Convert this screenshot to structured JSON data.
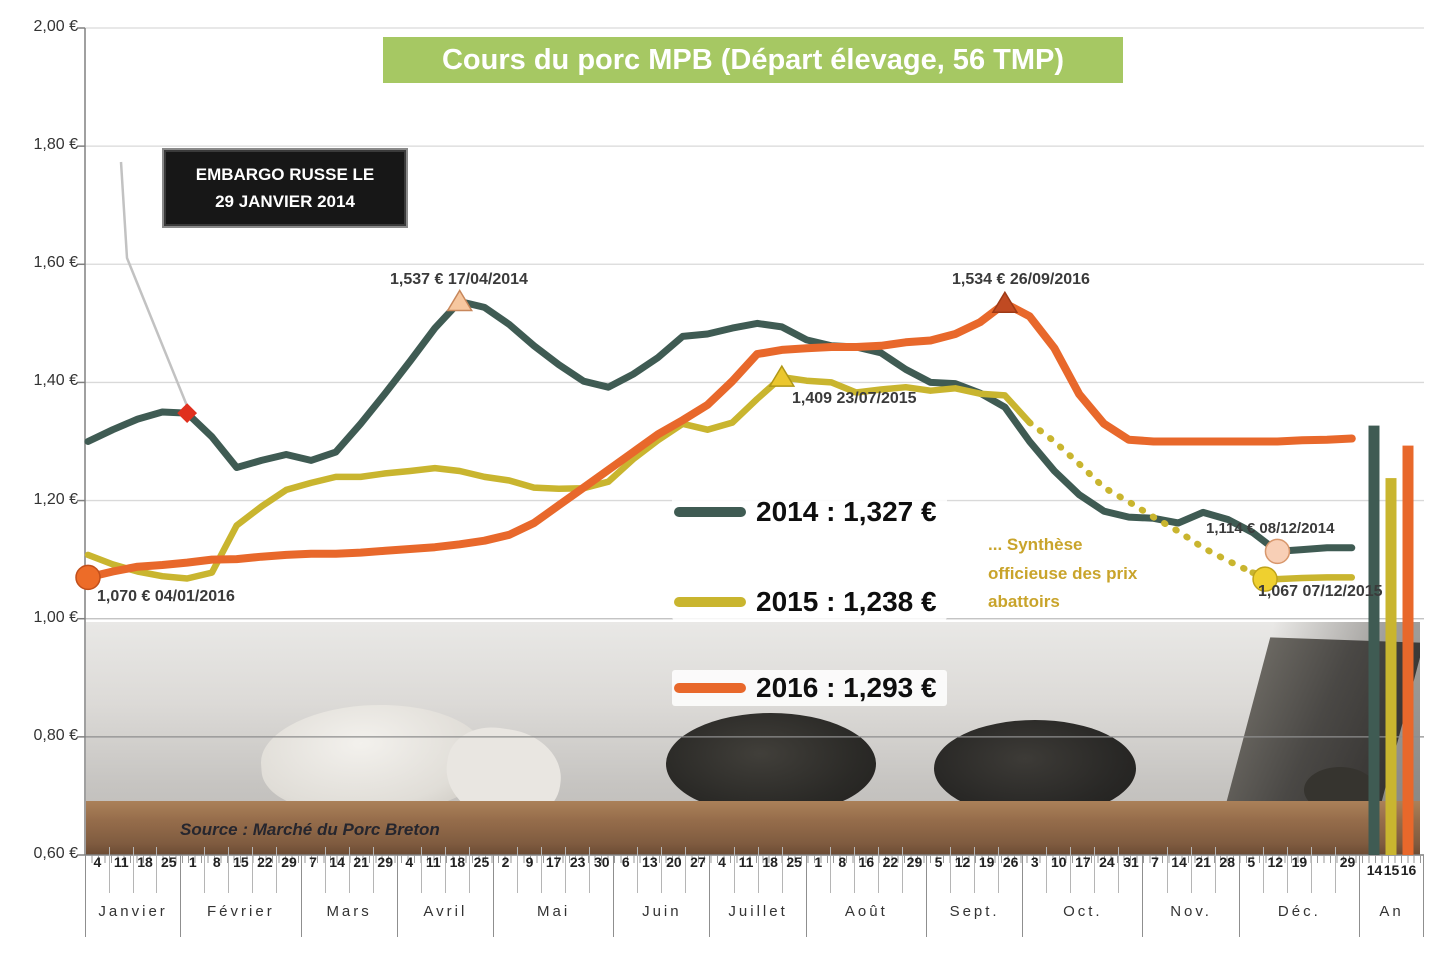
{
  "title": "Cours du porc MPB (Départ élevage, 56 TMP)",
  "colors": {
    "title_bg": "#a6c863",
    "series_2014": "#3f5b53",
    "series_2015": "#c9b52f",
    "series_2016": "#e8682b",
    "synthese_text": "#c9a42b",
    "embargo_bg": "#171717",
    "grid": "#d9d9d9",
    "axis": "#808080"
  },
  "embargo": {
    "line1": "EMBARGO RUSSE LE",
    "line2": "29 JANVIER 2014"
  },
  "source": "Source : Marché du Porc Breton",
  "synthese": {
    "line1": "... Synthèse",
    "line2": "officieuse des prix",
    "line3": "abattoirs"
  },
  "legend": [
    {
      "name": "2014",
      "label": "2014 : 1,327 €",
      "color": "#3f5b53"
    },
    {
      "name": "2015",
      "label": "2015 : 1,238 €",
      "color": "#c9b52f"
    },
    {
      "name": "2016",
      "label": "2016 : 1,293 €",
      "color": "#e8682b"
    }
  ],
  "annotations": {
    "peak_2014": "1,537 € 17/04/2014",
    "peak_2016": "1,534 € 26/09/2016",
    "peak_2015": "1,409 23/07/2015",
    "start_2016": "1,070 € 04/01/2016",
    "end_2014": "1,114 € 08/12/2014",
    "end_2015": "1,067 07/12/2015"
  },
  "y_axis": {
    "labels": [
      "2,00 €",
      "1,80 €",
      "1,60 €",
      "1,40 €",
      "1,20 €",
      "1,00 €",
      "0,80 €",
      "0,60 €"
    ],
    "values": [
      2.0,
      1.8,
      1.6,
      1.4,
      1.2,
      1.0,
      0.8,
      0.6
    ]
  },
  "x_axis": {
    "months": [
      {
        "label": "Janvier",
        "weeks": [
          "4",
          "11",
          "18",
          "25"
        ]
      },
      {
        "label": "Février",
        "weeks": [
          "1",
          "8",
          "15",
          "22",
          "29"
        ]
      },
      {
        "label": "Mars",
        "weeks": [
          "7",
          "14",
          "21",
          "29"
        ]
      },
      {
        "label": "Avril",
        "weeks": [
          "4",
          "11",
          "18",
          "25"
        ]
      },
      {
        "label": "Mai",
        "weeks": [
          "2",
          "9",
          "17",
          "23",
          "30"
        ]
      },
      {
        "label": "Juin",
        "weeks": [
          "6",
          "13",
          "20",
          "27"
        ]
      },
      {
        "label": "Juillet",
        "weeks": [
          "4",
          "11",
          "18",
          "25"
        ]
      },
      {
        "label": "Août",
        "weeks": [
          "1",
          "8",
          "16",
          "22",
          "29"
        ]
      },
      {
        "label": "Sept.",
        "weeks": [
          "5",
          "12",
          "19",
          "26"
        ]
      },
      {
        "label": "Oct.",
        "weeks": [
          "3",
          "10",
          "17",
          "24",
          "31"
        ]
      },
      {
        "label": "Nov.",
        "weeks": [
          "7",
          "14",
          "21",
          "28"
        ]
      },
      {
        "label": "Déc.",
        "weeks": [
          "5",
          "12",
          "19",
          "",
          "29"
        ]
      }
    ],
    "an": {
      "label": "An",
      "years": [
        "14",
        "15",
        "16"
      ]
    }
  },
  "chart_data": {
    "type": "line",
    "title": "Cours du porc MPB (Départ élevage, 56 TMP)",
    "x_unit": "semaines (janvier à décembre)",
    "y_unit": "€/kg",
    "ylim": [
      0.6,
      2.0
    ],
    "grid": true,
    "series": [
      {
        "name": "2014",
        "color": "#3f5b53",
        "annual_average": 1.327,
        "values": [
          1.3,
          1.32,
          1.338,
          1.35,
          1.348,
          1.308,
          1.256,
          1.268,
          1.278,
          1.268,
          1.282,
          1.33,
          1.382,
          1.436,
          1.492,
          1.537,
          1.527,
          1.498,
          1.462,
          1.43,
          1.402,
          1.392,
          1.414,
          1.442,
          1.478,
          1.482,
          1.492,
          1.5,
          1.494,
          1.472,
          1.462,
          1.46,
          1.45,
          1.422,
          1.4,
          1.398,
          1.382,
          1.358,
          1.3,
          1.25,
          1.21,
          1.182,
          1.172,
          1.17,
          1.162,
          1.18,
          1.168,
          1.146,
          1.114,
          1.117,
          1.12,
          1.12
        ]
      },
      {
        "name": "2015",
        "color": "#c9b52f",
        "annual_average": 1.238,
        "dotted_weeks": [
          38,
          47
        ],
        "dotted_note": "... Synthèse officieuse des prix abattoirs",
        "values": [
          1.108,
          1.092,
          1.08,
          1.072,
          1.068,
          1.078,
          1.158,
          1.19,
          1.218,
          1.23,
          1.24,
          1.24,
          1.246,
          1.25,
          1.255,
          1.25,
          1.24,
          1.234,
          1.222,
          1.22,
          1.221,
          1.232,
          1.27,
          1.302,
          1.33,
          1.32,
          1.332,
          1.372,
          1.409,
          1.403,
          1.4,
          1.383,
          1.388,
          1.392,
          1.386,
          1.39,
          1.381,
          1.378,
          1.332,
          1.3,
          1.262,
          1.222,
          1.198,
          1.172,
          1.148,
          1.12,
          1.098,
          1.078,
          1.067,
          1.069,
          1.07,
          1.07
        ]
      },
      {
        "name": "2016",
        "color": "#e8682b",
        "annual_average": 1.293,
        "values": [
          1.07,
          1.08,
          1.088,
          1.091,
          1.095,
          1.1,
          1.101,
          1.105,
          1.108,
          1.11,
          1.11,
          1.112,
          1.115,
          1.118,
          1.121,
          1.126,
          1.132,
          1.142,
          1.162,
          1.192,
          1.222,
          1.252,
          1.282,
          1.312,
          1.336,
          1.362,
          1.402,
          1.448,
          1.455,
          1.458,
          1.46,
          1.46,
          1.462,
          1.468,
          1.471,
          1.482,
          1.502,
          1.534,
          1.512,
          1.458,
          1.38,
          1.33,
          1.303,
          1.3,
          1.3,
          1.3,
          1.3,
          1.3,
          1.3,
          1.302,
          1.303,
          1.305
        ]
      }
    ],
    "annual_bars": [
      {
        "name": "2014",
        "value": 1.327
      },
      {
        "name": "2015",
        "value": 1.238
      },
      {
        "name": "2016",
        "value": 1.293
      }
    ],
    "key_points": [
      {
        "series": "2014",
        "week": 4,
        "value": 1.348,
        "marker": "diamond",
        "fill": "#e0301e",
        "stroke": "#b01e10",
        "note": "Embargo russe le 29 janvier 2014"
      },
      {
        "series": "2014",
        "week": 15,
        "value": 1.537,
        "marker": "triangle",
        "fill": "#f6c79f",
        "stroke": "#c8875b",
        "note": "1,537 € 17/04/2014"
      },
      {
        "series": "2015",
        "week": 28,
        "value": 1.409,
        "marker": "triangle",
        "fill": "#ebc72e",
        "stroke": "#b09717",
        "note": "1,409 23/07/2015"
      },
      {
        "series": "2016",
        "week": 37,
        "value": 1.534,
        "marker": "triangle",
        "fill": "#c04a22",
        "stroke": "#9e3a16",
        "note": "1,534 € 26/09/2016"
      },
      {
        "series": "2016",
        "week": 0,
        "value": 1.07,
        "marker": "circle",
        "fill": "#ed6c28",
        "stroke": "#c14f1b",
        "note": "1,070 € 04/01/2016"
      },
      {
        "series": "2014",
        "week": 48,
        "value": 1.114,
        "marker": "circle",
        "fill": "#f8cfb6",
        "stroke": "#d8976c",
        "note": "1,114 € 08/12/2014"
      },
      {
        "series": "2015",
        "week": 47.5,
        "value": 1.067,
        "marker": "circle",
        "fill": "#efd02f",
        "stroke": "#bfa31a",
        "note": "1,067 07/12/2015"
      }
    ]
  }
}
